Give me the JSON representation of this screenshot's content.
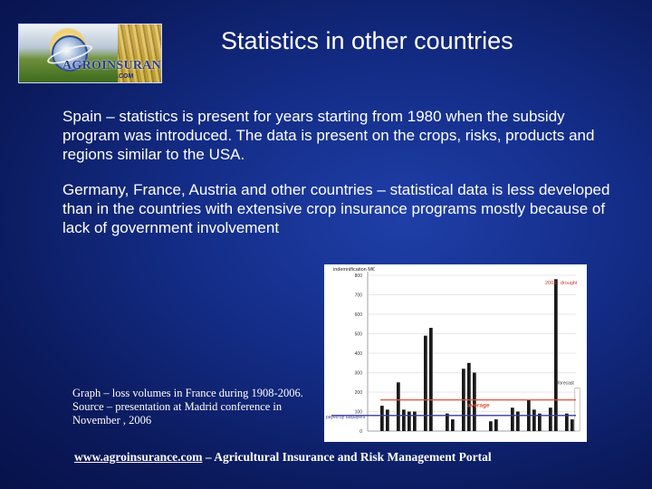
{
  "header": {
    "logo_brand": "AGROINSURANCE",
    "logo_sub": ".COM",
    "title": "Statistics in other countries"
  },
  "body": {
    "paragraph1": "Spain – statistics is present for years starting from 1980 when the subsidy program was introduced. The data is present on the crops, risks, products and regions similar to the USA.",
    "paragraph2": "Germany, France, Austria and other countries – statistical data is less developed than in the countries with extensive crop insurance programs mostly because of lack of government involvement"
  },
  "figure": {
    "caption": "Graph – loss volumes in France during 1908-2006. Source – presentation at Madrid conference  in November , 2006"
  },
  "footer": {
    "link": "www.agroinsurance.com",
    "rest": " – Agricultural Insurance and Risk Management Portal"
  },
  "colors": {
    "background": "#132c86",
    "average_line": "#e05030",
    "taxpayer_line": "#3a3aa0",
    "bars": "#1a1a1a"
  },
  "chart_data": {
    "type": "bar",
    "ylabel": "indemnification M€",
    "yticks": [
      0,
      100,
      200,
      300,
      400,
      500,
      600,
      700,
      800
    ],
    "ylim": [
      0,
      800
    ],
    "values": [
      130,
      110,
      0,
      250,
      110,
      100,
      100,
      0,
      490,
      530,
      0,
      0,
      90,
      60,
      0,
      320,
      350,
      300,
      0,
      0,
      50,
      60,
      0,
      0,
      120,
      100,
      0,
      160,
      110,
      90,
      0,
      120,
      780,
      0,
      90,
      60
    ],
    "annotations": {
      "drought": "2003 : drought",
      "forecast": "forecast",
      "average_label": "average",
      "average_value": 160,
      "taxpayer_label": "payed by taxpayers",
      "taxpayer_value": 80
    }
  }
}
